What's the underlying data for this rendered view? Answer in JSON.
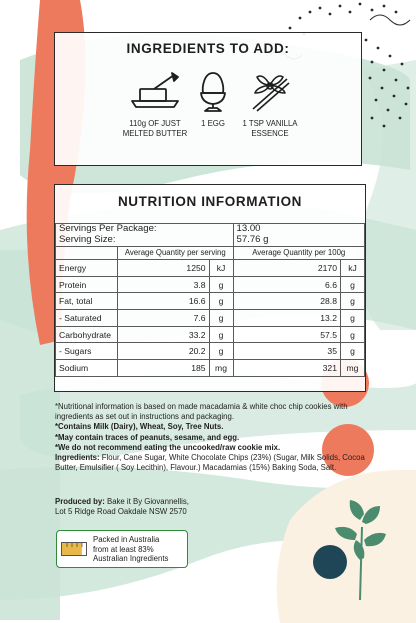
{
  "ingredients_card": {
    "title": "INGREDIENTS TO ADD:",
    "items": [
      {
        "icon": "butter-dish-icon",
        "label_line1": "110g OF JUST",
        "label_line2": "MELTED BUTTER"
      },
      {
        "icon": "egg-in-cup-icon",
        "label_line1": "1 EGG",
        "label_line2": ""
      },
      {
        "icon": "vanilla-flower-icon",
        "label_line1": "1 TSP VANILLA",
        "label_line2": "ESSENCE"
      }
    ]
  },
  "nutrition": {
    "title": "NUTRITION INFORMATION",
    "servings_label": "Servings Per Package:",
    "servings_value": "13.00",
    "serving_size_label": "Serving Size:",
    "serving_size_value": "57.76 g",
    "col_per_serving": "Average Quantity per serving",
    "col_per_100g": "Average Quantity per 100g",
    "rows": [
      {
        "name": "Energy",
        "serv": "1250",
        "serv_unit": "kJ",
        "per100": "2170",
        "per100_unit": "kJ"
      },
      {
        "name": "Protein",
        "serv": "3.8",
        "serv_unit": "g",
        "per100": "6.6",
        "per100_unit": "g"
      },
      {
        "name": "Fat, total",
        "serv": "16.6",
        "serv_unit": "g",
        "per100": "28.8",
        "per100_unit": "g"
      },
      {
        "name": " - Saturated",
        "serv": "7.6",
        "serv_unit": "g",
        "per100": "13.2",
        "per100_unit": "g"
      },
      {
        "name": "Carbohydrate",
        "serv": "33.2",
        "serv_unit": "g",
        "per100": "57.5",
        "per100_unit": "g"
      },
      {
        "name": " - Sugars",
        "serv": "20.2",
        "serv_unit": "g",
        "per100": "35",
        "per100_unit": "g"
      },
      {
        "name": "Sodium",
        "serv": "185",
        "serv_unit": "mg",
        "per100": "321",
        "per100_unit": "mg"
      }
    ]
  },
  "notes": {
    "line1": "*Nutritional information is based on made macadamia & white choc chip cookies with ingredients as set out in instructions and packaging.",
    "line2": "*Contains Milk (Dairy), Wheat, Soy, Tree Nuts.",
    "line3": "*May contain traces of peanuts, sesame, and egg.",
    "line4": "*We do not recommend eating the uncooked/raw cookie mix.",
    "ingredients_label": "Ingredients:",
    "ingredients_text": " Flour, Cane Sugar, White Chocolate Chips (23%) (Sugar, Milk Solids, Cocoa Butter, Emulsifier ( Soy Lecithin), Flavour.) Macadamias (15%) Baking Soda, Salt."
  },
  "producer": {
    "label": "Produced by:",
    "name": " Bake it By Giovannellis,",
    "address": "Lot 5 Ridge Road Oakdale NSW 2570"
  },
  "aus_badge": {
    "icon": "australian-ingredients-bar-icon",
    "line1": "Packed in Australia",
    "line2": "from at least 83%",
    "line3": "Australian Ingredients",
    "fraction": 0.83
  },
  "colors": {
    "mint": "#c9e3d6",
    "coral": "#ee7a5e",
    "cream": "#fbf1e2",
    "dark_teal": "#1f4656",
    "leaf_green": "#4b8c6f",
    "badge_green": "#2f8a3a",
    "badge_gold": "#e9b84a"
  }
}
